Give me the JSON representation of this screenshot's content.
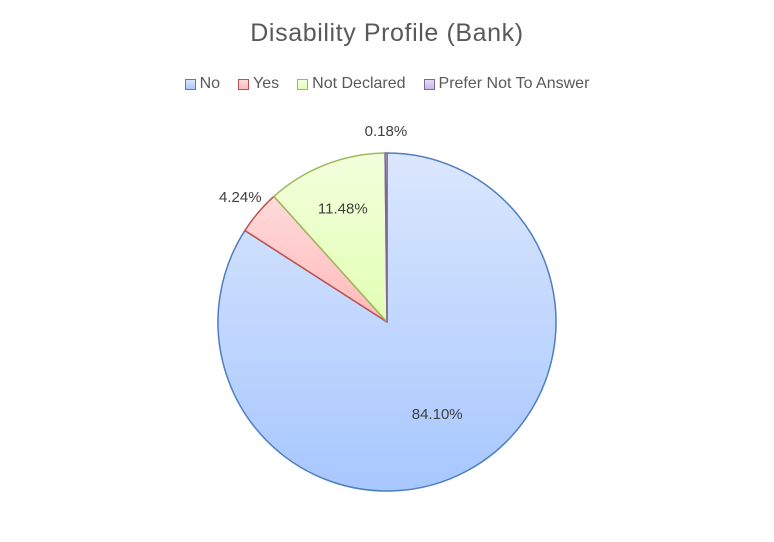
{
  "chart_data": {
    "type": "pie",
    "title": "Disability Profile (Bank)",
    "legend_position": "top",
    "slices": [
      {
        "name": "No",
        "value": 84.1,
        "label": "84.10%",
        "fill_top": "#dbe7fd",
        "fill_bottom": "#a7c7fe",
        "stroke": "#4f7fbe"
      },
      {
        "name": "Yes",
        "value": 4.24,
        "label": "4.24%",
        "fill_top": "#ffdada",
        "fill_bottom": "#ffbaba",
        "stroke": "#c0504d"
      },
      {
        "name": "Not Declared",
        "value": 11.48,
        "label": "11.48%",
        "fill_top": "#f3ffdc",
        "fill_bottom": "#e2ffb4",
        "stroke": "#9bbb59"
      },
      {
        "name": "Prefer Not To Answer",
        "value": 0.18,
        "label": "0.18%",
        "fill_top": "#e6dcf5",
        "fill_bottom": "#c9b6ea",
        "stroke": "#8064a2"
      }
    ]
  }
}
